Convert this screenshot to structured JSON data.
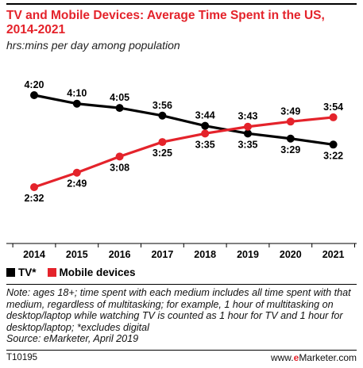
{
  "header": {
    "title": "TV and Mobile Devices: Average Time Spent in the US, 2014-2021",
    "subtitle": "hrs:mins per day among population"
  },
  "legend": {
    "items": [
      {
        "label": "TV*",
        "color": "#000000"
      },
      {
        "label": "Mobile devices",
        "color": "#e4232b"
      }
    ]
  },
  "footer": {
    "note": "Note: ages 18+; time spent with each medium includes all time spent with that medium, regardless of multitasking; for example, 1 hour of multitasking on desktop/laptop while watching TV is counted as 1 hour for TV and 1 hour for desktop/laptop; *excludes digital",
    "source": "Source: eMarketer, April 2019",
    "code": "T10195",
    "brand_prefix": "www.",
    "brand_e": "e",
    "brand_suffix": "Marketer.com"
  },
  "chart_data": {
    "type": "line",
    "categories": [
      "2014",
      "2015",
      "2016",
      "2017",
      "2018",
      "2019",
      "2020",
      "2021"
    ],
    "series": [
      {
        "name": "TV*",
        "color": "#000000",
        "values": [
          260,
          250,
          245,
          236,
          224,
          215,
          209,
          202
        ],
        "labels": [
          "4:20",
          "4:10",
          "4:05",
          "3:56",
          "3:44",
          "3:35",
          "3:29",
          "3:22"
        ]
      },
      {
        "name": "Mobile devices",
        "color": "#e4232b",
        "values": [
          152,
          169,
          188,
          205,
          215,
          223,
          229,
          234
        ],
        "labels": [
          "2:32",
          "2:49",
          "3:08",
          "3:25",
          "3:35",
          "3:43",
          "3:49",
          "3:54"
        ]
      }
    ],
    "value_unit": "minutes per day",
    "grid": false
  }
}
